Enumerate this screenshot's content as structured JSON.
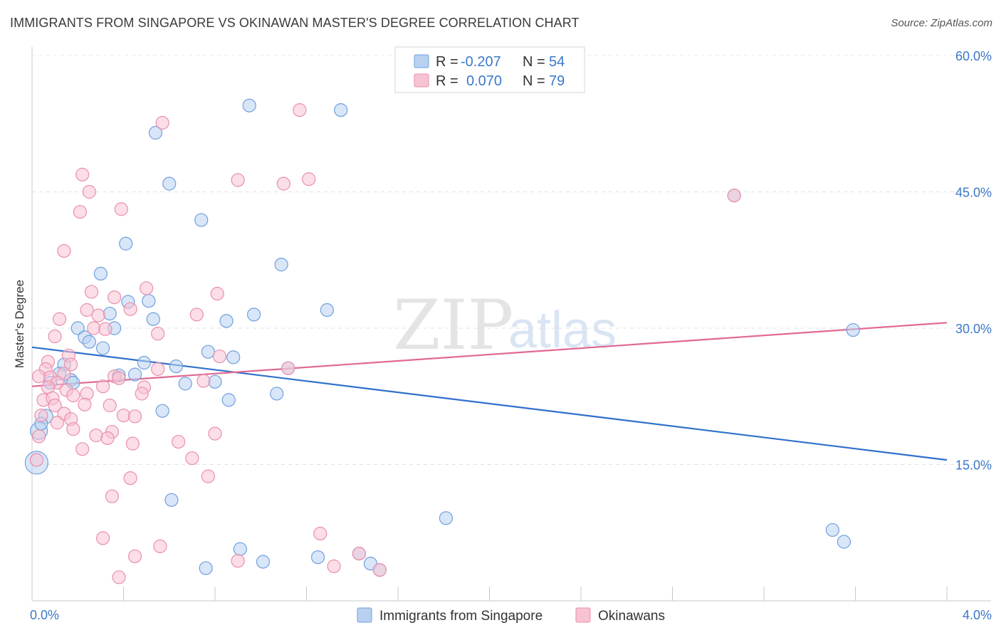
{
  "title": "IMMIGRANTS FROM SINGAPORE VS OKINAWAN MASTER'S DEGREE CORRELATION CHART",
  "source": "Source: ZipAtlas.com",
  "watermark": {
    "zip": "ZIP",
    "atlas": "atlas"
  },
  "chart_data": {
    "type": "scatter",
    "title": "IMMIGRANTS FROM SINGAPORE VS OKINAWAN MASTER'S DEGREE CORRELATION CHART",
    "xlabel": "",
    "ylabel": "Master's Degree",
    "xlim": [
      0.0,
      4.0
    ],
    "ylim": [
      0.0,
      60.0
    ],
    "x_tick_labels": [
      "0.0%",
      "4.0%"
    ],
    "y_ticks": [
      15,
      30,
      45,
      60
    ],
    "y_tick_labels": [
      "15.0%",
      "30.0%",
      "45.0%",
      "60.0%"
    ],
    "grid": true,
    "legend": {
      "position": "top-center",
      "rows": [
        {
          "r_label": "R =",
          "r_value": "-0.207",
          "n_label": "N =",
          "n_value": "54"
        },
        {
          "r_label": "R =",
          "r_value": "0.070",
          "n_label": "N =",
          "n_value": "79"
        }
      ]
    },
    "series": [
      {
        "name": "Immigrants from Singapore",
        "color": "#6f9fe0",
        "fill": "#b9d1f1",
        "trend": {
          "x0": 0.0,
          "y0": 27.9,
          "x1": 4.0,
          "y1": 15.5,
          "color": "#2f6fcc"
        },
        "points": [
          [
            0.95,
            54.5
          ],
          [
            1.35,
            54.0
          ],
          [
            0.54,
            51.5
          ],
          [
            0.6,
            45.9
          ],
          [
            0.74,
            41.9
          ],
          [
            0.41,
            39.3
          ],
          [
            1.09,
            37.0
          ],
          [
            0.3,
            36.0
          ],
          [
            0.42,
            32.9
          ],
          [
            0.51,
            33.0
          ],
          [
            1.29,
            32.0
          ],
          [
            0.34,
            31.6
          ],
          [
            0.53,
            31.0
          ],
          [
            0.85,
            30.8
          ],
          [
            0.97,
            31.5
          ],
          [
            0.2,
            30.0
          ],
          [
            0.36,
            30.0
          ],
          [
            0.23,
            29.0
          ],
          [
            0.25,
            28.5
          ],
          [
            0.31,
            27.8
          ],
          [
            0.77,
            27.4
          ],
          [
            0.88,
            26.8
          ],
          [
            0.49,
            26.2
          ],
          [
            0.63,
            25.8
          ],
          [
            0.14,
            26.0
          ],
          [
            0.12,
            25.0
          ],
          [
            0.38,
            24.8
          ],
          [
            0.45,
            24.9
          ],
          [
            0.17,
            24.3
          ],
          [
            0.08,
            24.0
          ],
          [
            0.67,
            23.9
          ],
          [
            0.8,
            24.1
          ],
          [
            1.07,
            22.8
          ],
          [
            0.86,
            22.1
          ],
          [
            0.57,
            20.9
          ],
          [
            0.06,
            20.3
          ],
          [
            0.03,
            18.7
          ],
          [
            0.02,
            15.2
          ],
          [
            0.61,
            11.1
          ],
          [
            1.81,
            9.1
          ],
          [
            3.59,
            29.8
          ],
          [
            3.07,
            44.6
          ],
          [
            3.5,
            7.8
          ],
          [
            3.55,
            6.5
          ],
          [
            0.91,
            5.7
          ],
          [
            0.76,
            3.6
          ],
          [
            1.01,
            4.3
          ],
          [
            1.25,
            4.8
          ],
          [
            1.43,
            5.2
          ],
          [
            1.48,
            4.1
          ],
          [
            1.52,
            3.4
          ],
          [
            1.12,
            25.6
          ],
          [
            0.18,
            24.0
          ],
          [
            0.04,
            19.5
          ]
        ]
      },
      {
        "name": "Okinawans",
        "color": "#ea8fab",
        "fill": "#f7c3d3",
        "trend": {
          "x0": 0.0,
          "y0": 23.6,
          "x1": 4.0,
          "y1": 30.6,
          "color": "#e06892"
        },
        "points": [
          [
            1.17,
            54.0
          ],
          [
            0.57,
            52.6
          ],
          [
            0.22,
            46.9
          ],
          [
            0.9,
            46.3
          ],
          [
            1.1,
            45.9
          ],
          [
            1.21,
            46.4
          ],
          [
            0.25,
            45.0
          ],
          [
            0.39,
            43.1
          ],
          [
            0.21,
            42.8
          ],
          [
            0.14,
            38.5
          ],
          [
            0.5,
            34.4
          ],
          [
            0.26,
            34.0
          ],
          [
            0.81,
            33.8
          ],
          [
            0.36,
            33.4
          ],
          [
            0.43,
            32.1
          ],
          [
            0.24,
            32.0
          ],
          [
            0.72,
            31.5
          ],
          [
            0.29,
            31.4
          ],
          [
            0.12,
            31.0
          ],
          [
            0.27,
            30.0
          ],
          [
            0.32,
            29.9
          ],
          [
            0.55,
            29.4
          ],
          [
            0.1,
            29.1
          ],
          [
            0.16,
            27.0
          ],
          [
            0.82,
            26.9
          ],
          [
            0.07,
            26.3
          ],
          [
            0.17,
            26.0
          ],
          [
            0.06,
            25.5
          ],
          [
            0.55,
            25.5
          ],
          [
            0.14,
            25.0
          ],
          [
            0.03,
            24.7
          ],
          [
            0.08,
            24.6
          ],
          [
            0.36,
            24.7
          ],
          [
            0.38,
            24.5
          ],
          [
            0.11,
            24.0
          ],
          [
            0.75,
            24.2
          ],
          [
            0.07,
            23.5
          ],
          [
            0.31,
            23.6
          ],
          [
            0.49,
            23.5
          ],
          [
            0.15,
            23.2
          ],
          [
            0.24,
            22.8
          ],
          [
            0.18,
            22.6
          ],
          [
            0.05,
            22.1
          ],
          [
            0.09,
            22.3
          ],
          [
            0.48,
            22.8
          ],
          [
            0.23,
            21.6
          ],
          [
            0.34,
            21.5
          ],
          [
            0.1,
            21.5
          ],
          [
            0.14,
            20.6
          ],
          [
            0.4,
            20.4
          ],
          [
            0.45,
            20.3
          ],
          [
            0.04,
            20.4
          ],
          [
            0.11,
            19.6
          ],
          [
            0.17,
            20.0
          ],
          [
            0.18,
            18.9
          ],
          [
            0.35,
            18.6
          ],
          [
            0.28,
            18.2
          ],
          [
            0.8,
            18.4
          ],
          [
            0.03,
            18.1
          ],
          [
            0.33,
            17.9
          ],
          [
            0.44,
            17.3
          ],
          [
            0.64,
            17.5
          ],
          [
            0.22,
            16.7
          ],
          [
            0.7,
            15.7
          ],
          [
            0.02,
            15.5
          ],
          [
            0.43,
            13.5
          ],
          [
            0.77,
            13.7
          ],
          [
            0.35,
            11.5
          ],
          [
            1.26,
            7.4
          ],
          [
            0.31,
            6.9
          ],
          [
            0.56,
            6.0
          ],
          [
            0.45,
            4.9
          ],
          [
            0.9,
            4.4
          ],
          [
            1.32,
            3.8
          ],
          [
            0.38,
            2.6
          ],
          [
            1.43,
            5.2
          ],
          [
            1.12,
            25.6
          ],
          [
            1.52,
            3.4
          ],
          [
            3.07,
            44.6
          ]
        ]
      }
    ]
  }
}
